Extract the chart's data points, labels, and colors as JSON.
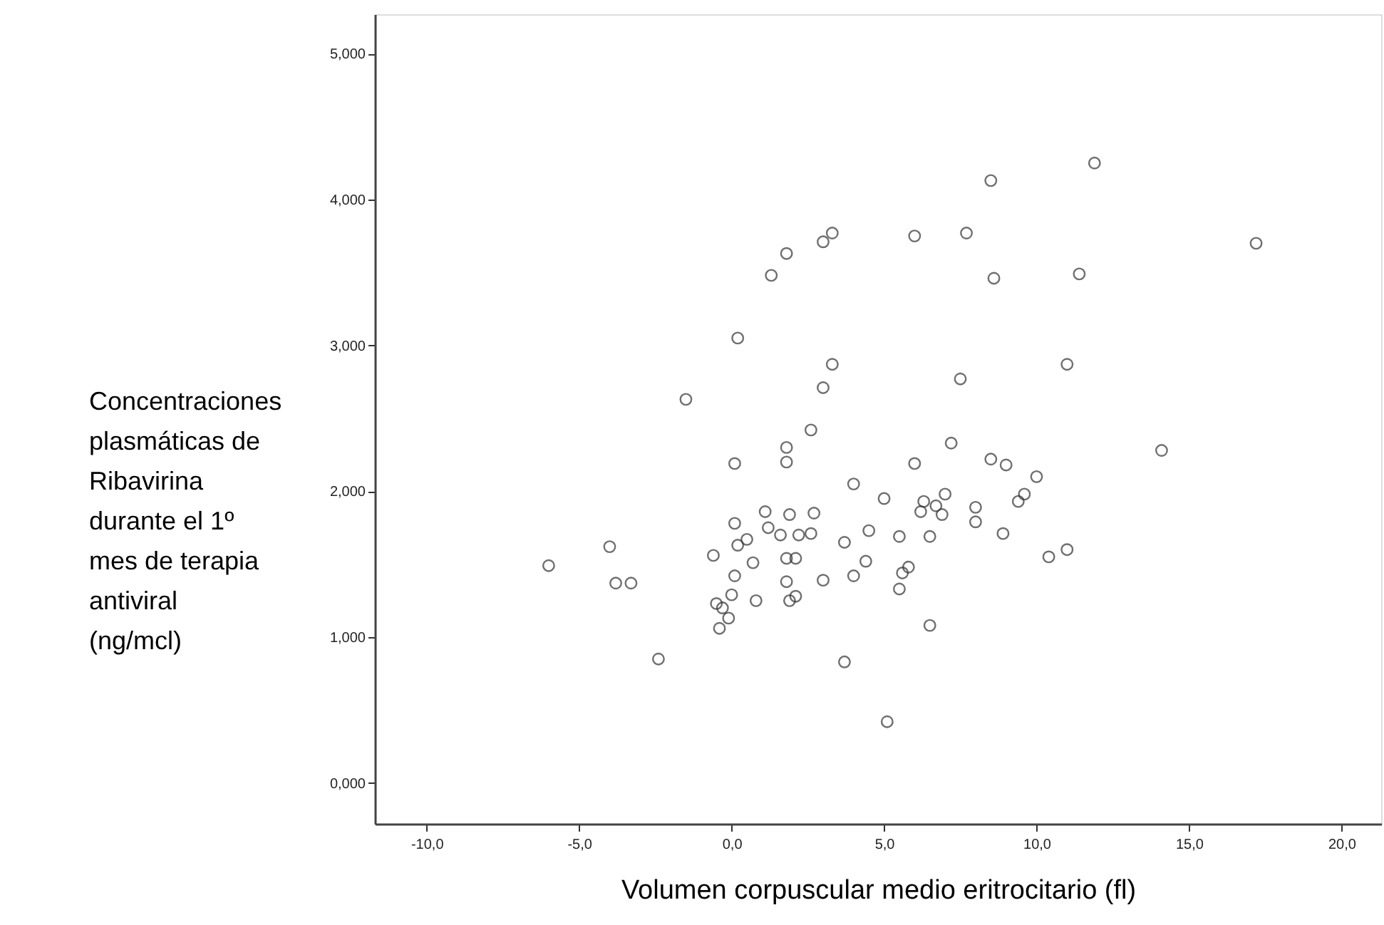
{
  "chart_data": {
    "type": "scatter",
    "xlabel": "Volumen corpuscular medio eritrocitario (fl)",
    "ylabel": "Concentraciones plasmáticas de Ribavirina durante el 1º mes de terapia antiviral (ng/mcl)",
    "xlim": [
      -11.7,
      21.3
    ],
    "ylim": [
      -0.28,
      5.27
    ],
    "xticks": [
      {
        "value": -10,
        "label": "-10,0"
      },
      {
        "value": -5,
        "label": "-5,0"
      },
      {
        "value": 0,
        "label": "0,0"
      },
      {
        "value": 5,
        "label": "5,0"
      },
      {
        "value": 10,
        "label": "10,0"
      },
      {
        "value": 15,
        "label": "15,0"
      },
      {
        "value": 20,
        "label": "20,0"
      }
    ],
    "yticks": [
      {
        "value": 0,
        "label": "0,000"
      },
      {
        "value": 1,
        "label": "1,000"
      },
      {
        "value": 2,
        "label": "2,000"
      },
      {
        "value": 3,
        "label": "3,000"
      },
      {
        "value": 4,
        "label": "4,000"
      },
      {
        "value": 5,
        "label": "5,000"
      }
    ],
    "grid": false,
    "marker": "circle",
    "series": [
      {
        "color": "#333333",
        "x": [
          -1.5,
          0.2,
          1.3,
          1.8,
          3.0,
          3.3,
          3.3,
          3.0,
          11.9,
          8.5,
          6.0,
          7.7,
          17.2,
          8.6,
          11.4,
          7.5,
          11.0,
          2.6,
          1.8,
          1.8,
          0.1,
          4.0,
          -6.0,
          -4.0,
          -3.8,
          -3.3,
          -2.4,
          1.1,
          1.9,
          2.7,
          0.1,
          1.2,
          1.6,
          2.2,
          2.6,
          0.5,
          0.2,
          -0.6,
          1.8,
          2.1,
          0.7,
          0.1,
          1.8,
          3.0,
          3.7,
          4.0,
          0.0,
          2.1,
          1.9,
          0.8,
          -0.5,
          -0.3,
          -0.1,
          -0.4,
          3.7,
          7.2,
          14.1,
          8.5,
          9.0,
          6.0,
          10.0,
          5.0,
          7.0,
          9.6,
          9.4,
          6.3,
          6.7,
          8.0,
          6.2,
          6.9,
          8.0,
          8.9,
          4.5,
          5.5,
          6.5,
          11.0,
          10.4,
          4.4,
          5.8,
          5.6,
          5.5,
          6.5,
          5.1
        ],
        "values": [
          2.63,
          3.05,
          3.48,
          3.63,
          3.71,
          3.77,
          2.87,
          2.71,
          4.25,
          4.13,
          3.75,
          3.77,
          3.7,
          3.46,
          3.49,
          2.77,
          2.87,
          2.42,
          2.3,
          2.2,
          2.19,
          2.05,
          1.49,
          1.62,
          1.37,
          1.37,
          0.85,
          1.86,
          1.84,
          1.85,
          1.78,
          1.75,
          1.7,
          1.7,
          1.71,
          1.67,
          1.63,
          1.56,
          1.54,
          1.54,
          1.51,
          1.42,
          1.38,
          1.39,
          1.65,
          1.42,
          1.29,
          1.28,
          1.25,
          1.25,
          1.23,
          1.2,
          1.13,
          1.06,
          0.83,
          2.33,
          2.28,
          2.22,
          2.18,
          2.19,
          2.1,
          1.95,
          1.98,
          1.98,
          1.93,
          1.93,
          1.9,
          1.89,
          1.86,
          1.84,
          1.79,
          1.71,
          1.73,
          1.69,
          1.69,
          1.6,
          1.55,
          1.52,
          1.48,
          1.44,
          1.33,
          1.08,
          0.42
        ]
      }
    ]
  }
}
